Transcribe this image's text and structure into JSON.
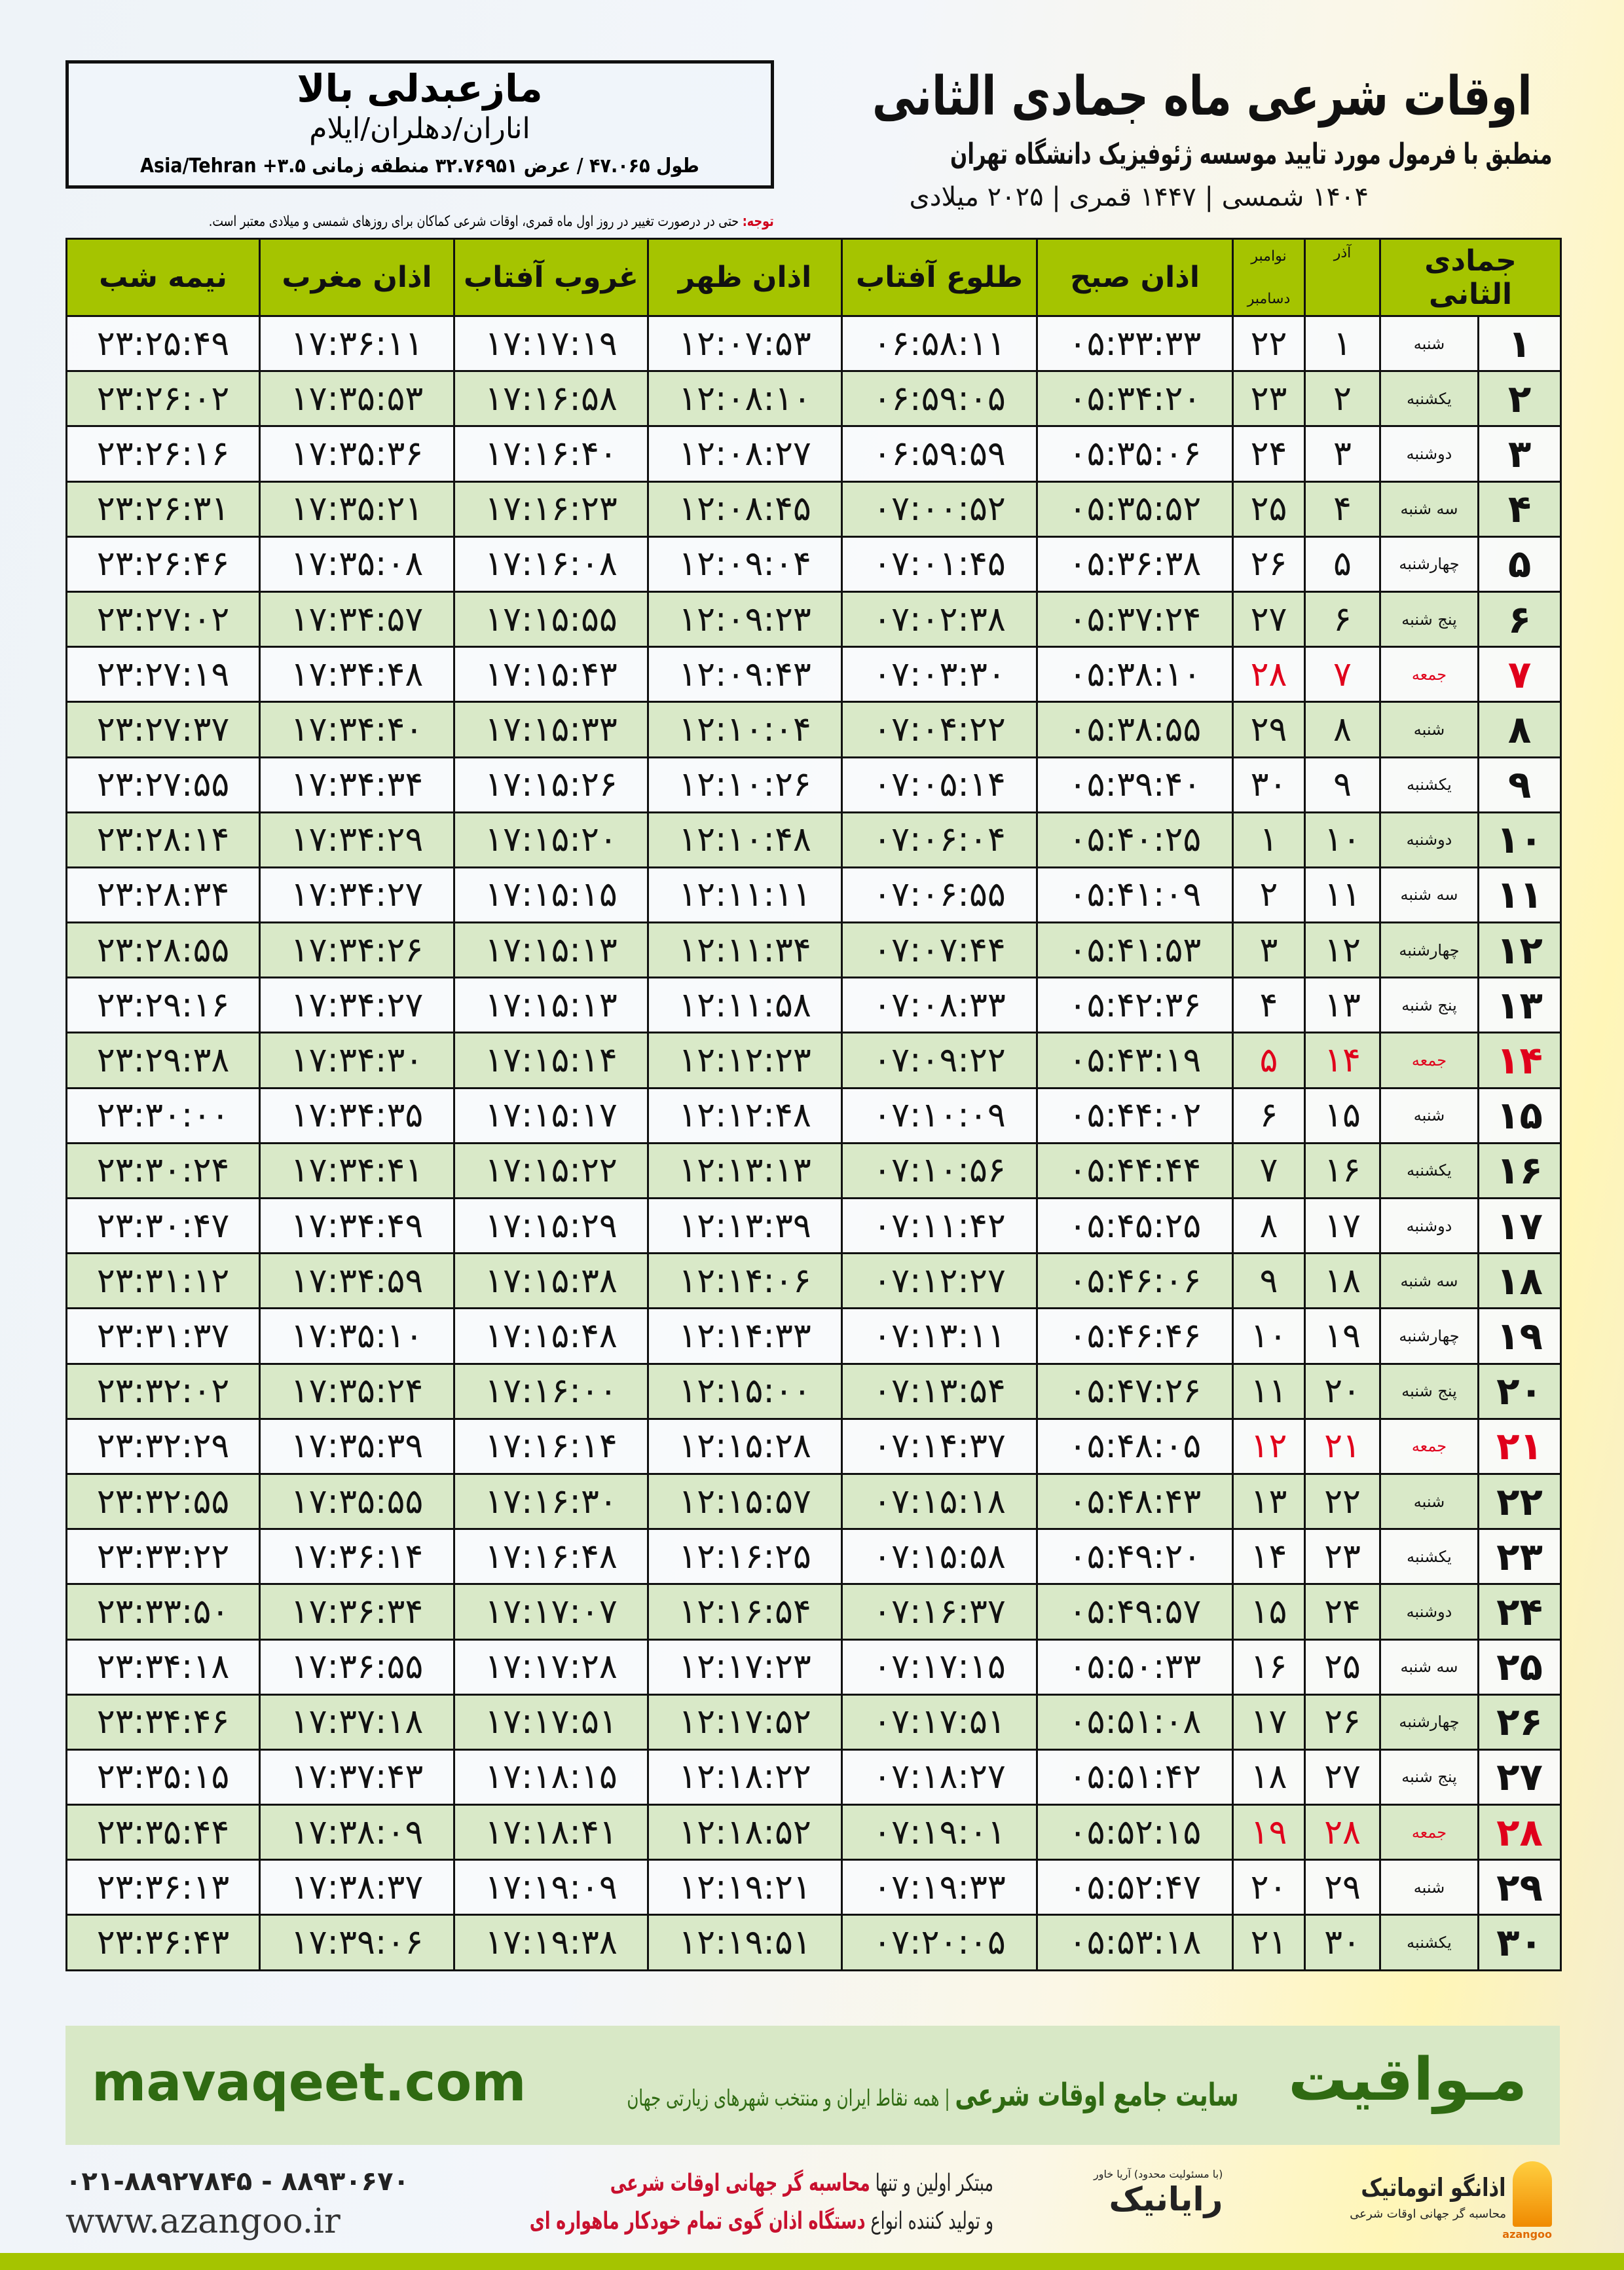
{
  "header": {
    "title": "اوقات شرعی ماه جمادی الثانی",
    "subtitle": "منطبق با فرمول مورد تایید موسسه ژئوفیزیک دانشگاه تهران",
    "years": "۱۴۰۴ شمسی | ۱۴۴۷ قمری | ۲۰۲۵ میلادی"
  },
  "location": {
    "name": "مازعبدلی بالا",
    "path": "اناران/دهلران/ایلام",
    "coords": "طول ۴۷.۰۶۵ / عرض ۳۲.۷۶۹۵۱ منطقه زمانی ۳.۵+ Asia/Tehran"
  },
  "note": {
    "label": "توجه:",
    "text": " حتی در درصورت تغییر در روز اول ماه قمری، اوقات شرعی کماکان برای روزهای شمسی و میلادی معتبر است."
  },
  "table": {
    "headers": {
      "month": "جمادی الثانی",
      "azar": "آذر",
      "greg_top": "نوامبر",
      "greg_bottom": "دسامبر",
      "fajr": "اذان صبح",
      "sunrise": "طلوع آفتاب",
      "dhuhr": "اذان ظهر",
      "sunset": "غروب آفتاب",
      "maghrib": "اذان مغرب",
      "midnight": "نیمه شب"
    },
    "friday_color": "#e0001b",
    "rows": [
      [
        "۱",
        "شنبه",
        "۱",
        "۲۲",
        "۰۵:۳۳:۳۳",
        "۰۶:۵۸:۱۱",
        "۱۲:۰۷:۵۳",
        "۱۷:۱۷:۱۹",
        "۱۷:۳۶:۱۱",
        "۲۳:۲۵:۴۹"
      ],
      [
        "۲",
        "یکشنبه",
        "۲",
        "۲۳",
        "۰۵:۳۴:۲۰",
        "۰۶:۵۹:۰۵",
        "۱۲:۰۸:۱۰",
        "۱۷:۱۶:۵۸",
        "۱۷:۳۵:۵۳",
        "۲۳:۲۶:۰۲"
      ],
      [
        "۳",
        "دوشنبه",
        "۳",
        "۲۴",
        "۰۵:۳۵:۰۶",
        "۰۶:۵۹:۵۹",
        "۱۲:۰۸:۲۷",
        "۱۷:۱۶:۴۰",
        "۱۷:۳۵:۳۶",
        "۲۳:۲۶:۱۶"
      ],
      [
        "۴",
        "سه شنبه",
        "۴",
        "۲۵",
        "۰۵:۳۵:۵۲",
        "۰۷:۰۰:۵۲",
        "۱۲:۰۸:۴۵",
        "۱۷:۱۶:۲۳",
        "۱۷:۳۵:۲۱",
        "۲۳:۲۶:۳۱"
      ],
      [
        "۵",
        "چهارشنبه",
        "۵",
        "۲۶",
        "۰۵:۳۶:۳۸",
        "۰۷:۰۱:۴۵",
        "۱۲:۰۹:۰۴",
        "۱۷:۱۶:۰۸",
        "۱۷:۳۵:۰۸",
        "۲۳:۲۶:۴۶"
      ],
      [
        "۶",
        "پنج شنبه",
        "۶",
        "۲۷",
        "۰۵:۳۷:۲۴",
        "۰۷:۰۲:۳۸",
        "۱۲:۰۹:۲۳",
        "۱۷:۱۵:۵۵",
        "۱۷:۳۴:۵۷",
        "۲۳:۲۷:۰۲"
      ],
      [
        "۷",
        "جمعه",
        "۷",
        "۲۸",
        "۰۵:۳۸:۱۰",
        "۰۷:۰۳:۳۰",
        "۱۲:۰۹:۴۳",
        "۱۷:۱۵:۴۳",
        "۱۷:۳۴:۴۸",
        "۲۳:۲۷:۱۹"
      ],
      [
        "۸",
        "شنبه",
        "۸",
        "۲۹",
        "۰۵:۳۸:۵۵",
        "۰۷:۰۴:۲۲",
        "۱۲:۱۰:۰۴",
        "۱۷:۱۵:۳۳",
        "۱۷:۳۴:۴۰",
        "۲۳:۲۷:۳۷"
      ],
      [
        "۹",
        "یکشنبه",
        "۹",
        "۳۰",
        "۰۵:۳۹:۴۰",
        "۰۷:۰۵:۱۴",
        "۱۲:۱۰:۲۶",
        "۱۷:۱۵:۲۶",
        "۱۷:۳۴:۳۴",
        "۲۳:۲۷:۵۵"
      ],
      [
        "۱۰",
        "دوشنبه",
        "۱۰",
        "۱",
        "۰۵:۴۰:۲۵",
        "۰۷:۰۶:۰۴",
        "۱۲:۱۰:۴۸",
        "۱۷:۱۵:۲۰",
        "۱۷:۳۴:۲۹",
        "۲۳:۲۸:۱۴"
      ],
      [
        "۱۱",
        "سه شنبه",
        "۱۱",
        "۲",
        "۰۵:۴۱:۰۹",
        "۰۷:۰۶:۵۵",
        "۱۲:۱۱:۱۱",
        "۱۷:۱۵:۱۵",
        "۱۷:۳۴:۲۷",
        "۲۳:۲۸:۳۴"
      ],
      [
        "۱۲",
        "چهارشنبه",
        "۱۲",
        "۳",
        "۰۵:۴۱:۵۳",
        "۰۷:۰۷:۴۴",
        "۱۲:۱۱:۳۴",
        "۱۷:۱۵:۱۳",
        "۱۷:۳۴:۲۶",
        "۲۳:۲۸:۵۵"
      ],
      [
        "۱۳",
        "پنج شنبه",
        "۱۳",
        "۴",
        "۰۵:۴۲:۳۶",
        "۰۷:۰۸:۳۳",
        "۱۲:۱۱:۵۸",
        "۱۷:۱۵:۱۳",
        "۱۷:۳۴:۲۷",
        "۲۳:۲۹:۱۶"
      ],
      [
        "۱۴",
        "جمعه",
        "۱۴",
        "۵",
        "۰۵:۴۳:۱۹",
        "۰۷:۰۹:۲۲",
        "۱۲:۱۲:۲۳",
        "۱۷:۱۵:۱۴",
        "۱۷:۳۴:۳۰",
        "۲۳:۲۹:۳۸"
      ],
      [
        "۱۵",
        "شنبه",
        "۱۵",
        "۶",
        "۰۵:۴۴:۰۲",
        "۰۷:۱۰:۰۹",
        "۱۲:۱۲:۴۸",
        "۱۷:۱۵:۱۷",
        "۱۷:۳۴:۳۵",
        "۲۳:۳۰:۰۰"
      ],
      [
        "۱۶",
        "یکشنبه",
        "۱۶",
        "۷",
        "۰۵:۴۴:۴۴",
        "۰۷:۱۰:۵۶",
        "۱۲:۱۳:۱۳",
        "۱۷:۱۵:۲۲",
        "۱۷:۳۴:۴۱",
        "۲۳:۳۰:۲۴"
      ],
      [
        "۱۷",
        "دوشنبه",
        "۱۷",
        "۸",
        "۰۵:۴۵:۲۵",
        "۰۷:۱۱:۴۲",
        "۱۲:۱۳:۳۹",
        "۱۷:۱۵:۲۹",
        "۱۷:۳۴:۴۹",
        "۲۳:۳۰:۴۷"
      ],
      [
        "۱۸",
        "سه شنبه",
        "۱۸",
        "۹",
        "۰۵:۴۶:۰۶",
        "۰۷:۱۲:۲۷",
        "۱۲:۱۴:۰۶",
        "۱۷:۱۵:۳۸",
        "۱۷:۳۴:۵۹",
        "۲۳:۳۱:۱۲"
      ],
      [
        "۱۹",
        "چهارشنبه",
        "۱۹",
        "۱۰",
        "۰۵:۴۶:۴۶",
        "۰۷:۱۳:۱۱",
        "۱۲:۱۴:۳۳",
        "۱۷:۱۵:۴۸",
        "۱۷:۳۵:۱۰",
        "۲۳:۳۱:۳۷"
      ],
      [
        "۲۰",
        "پنج شنبه",
        "۲۰",
        "۱۱",
        "۰۵:۴۷:۲۶",
        "۰۷:۱۳:۵۴",
        "۱۲:۱۵:۰۰",
        "۱۷:۱۶:۰۰",
        "۱۷:۳۵:۲۴",
        "۲۳:۳۲:۰۲"
      ],
      [
        "۲۱",
        "جمعه",
        "۲۱",
        "۱۲",
        "۰۵:۴۸:۰۵",
        "۰۷:۱۴:۳۷",
        "۱۲:۱۵:۲۸",
        "۱۷:۱۶:۱۴",
        "۱۷:۳۵:۳۹",
        "۲۳:۳۲:۲۹"
      ],
      [
        "۲۲",
        "شنبه",
        "۲۲",
        "۱۳",
        "۰۵:۴۸:۴۳",
        "۰۷:۱۵:۱۸",
        "۱۲:۱۵:۵۷",
        "۱۷:۱۶:۳۰",
        "۱۷:۳۵:۵۵",
        "۲۳:۳۲:۵۵"
      ],
      [
        "۲۳",
        "یکشنبه",
        "۲۳",
        "۱۴",
        "۰۵:۴۹:۲۰",
        "۰۷:۱۵:۵۸",
        "۱۲:۱۶:۲۵",
        "۱۷:۱۶:۴۸",
        "۱۷:۳۶:۱۴",
        "۲۳:۳۳:۲۲"
      ],
      [
        "۲۴",
        "دوشنبه",
        "۲۴",
        "۱۵",
        "۰۵:۴۹:۵۷",
        "۰۷:۱۶:۳۷",
        "۱۲:۱۶:۵۴",
        "۱۷:۱۷:۰۷",
        "۱۷:۳۶:۳۴",
        "۲۳:۳۳:۵۰"
      ],
      [
        "۲۵",
        "سه شنبه",
        "۲۵",
        "۱۶",
        "۰۵:۵۰:۳۳",
        "۰۷:۱۷:۱۵",
        "۱۲:۱۷:۲۳",
        "۱۷:۱۷:۲۸",
        "۱۷:۳۶:۵۵",
        "۲۳:۳۴:۱۸"
      ],
      [
        "۲۶",
        "چهارشنبه",
        "۲۶",
        "۱۷",
        "۰۵:۵۱:۰۸",
        "۰۷:۱۷:۵۱",
        "۱۲:۱۷:۵۲",
        "۱۷:۱۷:۵۱",
        "۱۷:۳۷:۱۸",
        "۲۳:۳۴:۴۶"
      ],
      [
        "۲۷",
        "پنج شنبه",
        "۲۷",
        "۱۸",
        "۰۵:۵۱:۴۲",
        "۰۷:۱۸:۲۷",
        "۱۲:۱۸:۲۲",
        "۱۷:۱۸:۱۵",
        "۱۷:۳۷:۴۳",
        "۲۳:۳۵:۱۵"
      ],
      [
        "۲۸",
        "جمعه",
        "۲۸",
        "۱۹",
        "۰۵:۵۲:۱۵",
        "۰۷:۱۹:۰۱",
        "۱۲:۱۸:۵۲",
        "۱۷:۱۸:۴۱",
        "۱۷:۳۸:۰۹",
        "۲۳:۳۵:۴۴"
      ],
      [
        "۲۹",
        "شنبه",
        "۲۹",
        "۲۰",
        "۰۵:۵۲:۴۷",
        "۰۷:۱۹:۳۳",
        "۱۲:۱۹:۲۱",
        "۱۷:۱۹:۰۹",
        "۱۷:۳۸:۳۷",
        "۲۳:۳۶:۱۳"
      ],
      [
        "۳۰",
        "یکشنبه",
        "۳۰",
        "۲۱",
        "۰۵:۵۳:۱۸",
        "۰۷:۲۰:۰۵",
        "۱۲:۱۹:۵۱",
        "۱۷:۱۹:۳۸",
        "۱۷:۳۹:۰۶",
        "۲۳:۳۶:۴۳"
      ]
    ]
  },
  "banner": {
    "brand": "مـواقیت",
    "tagline_main": "سایت جامع اوقات شرعی",
    "tagline_sub": "همه نقاط ایران و منتخب شهرهای زیارتی جهان",
    "site": "mavaqeet.com",
    "color": "#2f6a12",
    "bg": "#d8e8c6"
  },
  "footer": {
    "phone": "۰۲۱-۸۸۹۲۷۸۴۵ - ۸۸۹۳۰۶۷۰",
    "website": "www.azangoo.ir",
    "promo_1a": "مبتکر اولین و تنها ",
    "promo_1b": "محاسبه گر جهانی اوقات شرعی",
    "promo_2a": "و تولید کننده انواع ",
    "promo_2b": "دستگاه اذان گوی تمام خودکار ماهواره ای",
    "logo_rayanik": "رایانیک",
    "logo_rayanik_sub": "(با مسئولیت محدود) آریا خاور",
    "logo_azangoo": "اذانگو اتوماتیک",
    "logo_azangoo_sub": "محاسبه گر جهانی اوقات شرعی",
    "logo_azangoo_en": "azangoo"
  },
  "colors": {
    "header_green": "#a5c400",
    "row_alt": "#d9e9c8"
  }
}
